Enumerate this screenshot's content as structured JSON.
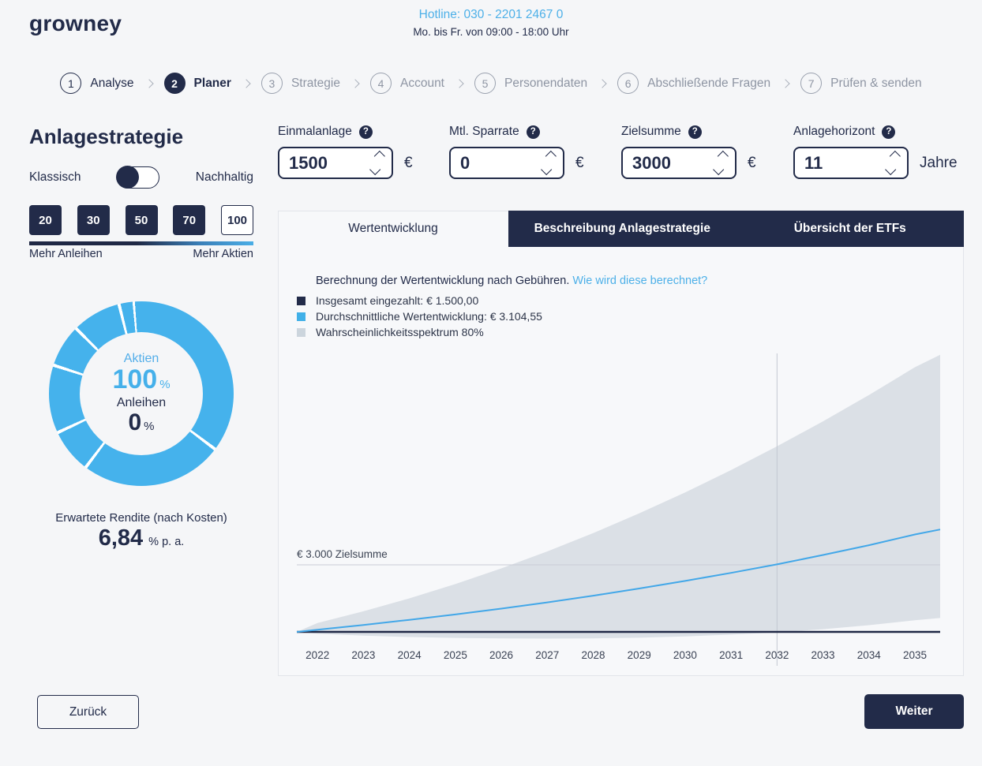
{
  "header": {
    "logo": "growney",
    "hotline": "Hotline: 030 - 2201 2467 0",
    "hours": "Mo. bis Fr. von 09:00 - 18:00 Uhr"
  },
  "stepper": {
    "steps": [
      {
        "num": "1",
        "label": "Analyse",
        "state": "done"
      },
      {
        "num": "2",
        "label": "Planer",
        "state": "active"
      },
      {
        "num": "3",
        "label": "Strategie",
        "state": "upcoming"
      },
      {
        "num": "4",
        "label": "Account",
        "state": "upcoming"
      },
      {
        "num": "5",
        "label": "Personendaten",
        "state": "upcoming"
      },
      {
        "num": "6",
        "label": "Abschließende Fragen",
        "state": "upcoming"
      },
      {
        "num": "7",
        "label": "Prüfen & senden",
        "state": "upcoming"
      }
    ]
  },
  "strategy": {
    "title": "Anlagestrategie",
    "toggle_left": "Klassisch",
    "toggle_right": "Nachhaltig",
    "toggle_state": "Klassisch",
    "risk_levels": [
      "20",
      "30",
      "50",
      "70",
      "100"
    ],
    "selected_risk": "100",
    "scale_left": "Mehr Anleihen",
    "scale_right": "Mehr Aktien",
    "donut": {
      "aktien_label": "Aktien",
      "aktien_value": "100",
      "aktien_unit": "%",
      "anleihen_label": "Anleihen",
      "anleihen_value": "0",
      "anleihen_unit": "%"
    },
    "rendite_label": "Erwartete Rendite (nach Kosten)",
    "rendite_value": "6,84",
    "rendite_unit": "% p. a."
  },
  "inputs": {
    "fields": [
      {
        "label": "Einmalanlage",
        "value": "1500",
        "suffix": "€"
      },
      {
        "label": "Mtl. Sparrate",
        "value": "0",
        "suffix": "€"
      },
      {
        "label": "Zielsumme",
        "value": "3000",
        "suffix": "€"
      },
      {
        "label": "Anlagehorizont",
        "value": "11",
        "suffix": "Jahre"
      }
    ]
  },
  "tabs": {
    "active": "Wertentwicklung",
    "dark": [
      "Beschreibung Anlagestrategie",
      "Übersicht der ETFs"
    ]
  },
  "chart_info": {
    "description": "Berechnung der Wertentwicklung nach Gebühren.",
    "link": "Wie wird diese berechnet?",
    "legend": [
      {
        "label": "Insgesamt eingezahlt: € 1.500,00",
        "color": "#222b49"
      },
      {
        "label": "Durchschnittliche Wertentwicklung: € 3.104,55",
        "color": "#41b0e8"
      },
      {
        "label": "Wahrscheinlichkeitsspektrum 80%",
        "color": "#ccd5dd"
      }
    ],
    "target_label": "€ 3.000 Zielsumme"
  },
  "chart_data": {
    "type": "area",
    "title": "Wertentwicklung",
    "x": [
      2022,
      2023,
      2024,
      2025,
      2026,
      2027,
      2028,
      2029,
      2030,
      2031,
      2032,
      2033,
      2034,
      2035
    ],
    "x_start": 2021.55,
    "x_end": 2035.55,
    "start_value": 1500,
    "series": [
      {
        "name": "Insgesamt eingezahlt",
        "color": "#1f2845",
        "values": [
          1500,
          1500,
          1500,
          1500,
          1500,
          1500,
          1500,
          1500,
          1500,
          1500,
          1500,
          1500,
          1500,
          1500
        ],
        "end_value": 1500
      },
      {
        "name": "Durchschnittliche Wertentwicklung",
        "color": "#42a7e8",
        "values": [
          1550,
          1655,
          1770,
          1890,
          2020,
          2160,
          2310,
          2470,
          2640,
          2820,
          3010,
          3220,
          3440,
          3680
        ],
        "end_value": 3790
      },
      {
        "name": "Wahrscheinlichkeitsspektrum 80% oben",
        "color": "#d3dae1",
        "values": [
          1700,
          1960,
          2250,
          2570,
          2920,
          3300,
          3710,
          4150,
          4620,
          5120,
          5650,
          6210,
          6800,
          7420
        ],
        "end_value": 7700
      },
      {
        "name": "Wahrscheinlichkeitsspektrum 80% unten",
        "color": "#d3dae1",
        "values": [
          1460,
          1415,
          1385,
          1365,
          1355,
          1350,
          1355,
          1370,
          1400,
          1440,
          1490,
          1560,
          1650,
          1760
        ],
        "end_value": 1810
      }
    ],
    "target_line": 3000,
    "horizon_year": 2032,
    "annotation_final_avg": "€ 3.104,55",
    "ylim": [
      1500,
      7900
    ],
    "grid": false,
    "legend_position": "top-left"
  },
  "footer": {
    "back_label": "Zurück",
    "next_label": "Weiter"
  },
  "colors": {
    "navy": "#222b49",
    "accent_blue": "#45b2ec",
    "link_blue": "#4db0e8",
    "band_gray": "#d3dae1",
    "page_bg": "#f5f6f8"
  }
}
